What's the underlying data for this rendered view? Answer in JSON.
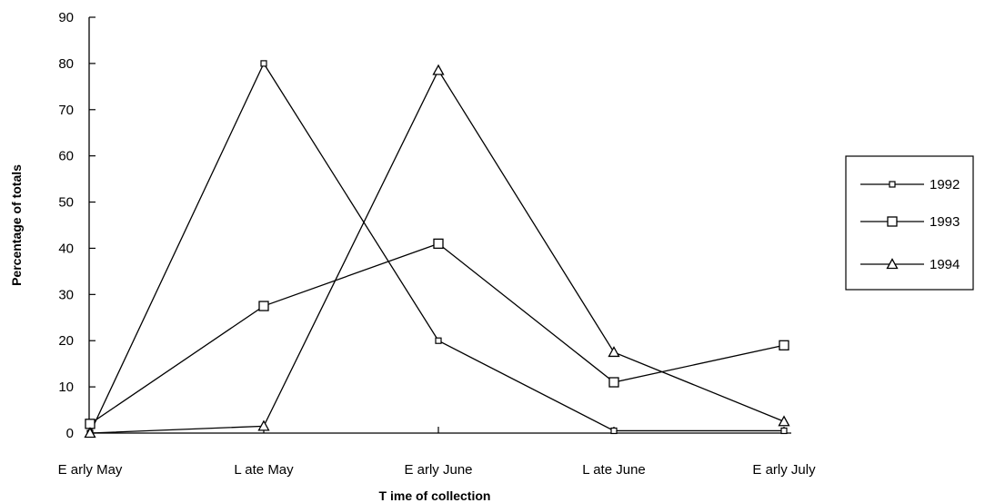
{
  "chart_data": {
    "type": "line",
    "title": "",
    "xlabel": "T ime of collection",
    "ylabel": "Percentage of totals",
    "categories": [
      "E arly May",
      "L ate May",
      "E arly June",
      "L ate June",
      "E arly July"
    ],
    "ylim": [
      0,
      90
    ],
    "yticks": [
      0,
      10,
      20,
      30,
      40,
      50,
      60,
      70,
      80,
      90
    ],
    "grid": false,
    "legend_position": "right",
    "series": [
      {
        "name": "1992",
        "marker": "small-square",
        "values": [
          0,
          80,
          20,
          0.5,
          0.5
        ]
      },
      {
        "name": "1993",
        "marker": "square",
        "values": [
          2,
          27.5,
          41,
          11,
          19
        ]
      },
      {
        "name": "1994",
        "marker": "triangle",
        "values": [
          0,
          1.5,
          78.5,
          17.5,
          2.5
        ]
      }
    ],
    "colors": {
      "line": "#000000",
      "marker_fill": "#ffffff",
      "background": "#ffffff"
    }
  }
}
